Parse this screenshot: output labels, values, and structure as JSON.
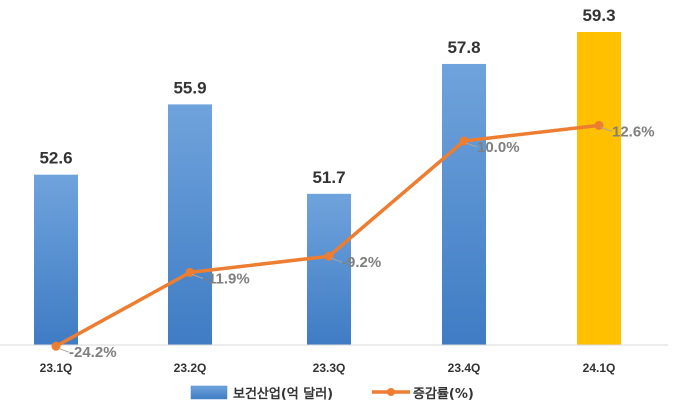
{
  "chart_data": {
    "type": "bar",
    "categories": [
      "23.1Q",
      "23.2Q",
      "23.3Q",
      "23.4Q",
      "24.1Q"
    ],
    "series": [
      {
        "name": "보건산업(억 달러)",
        "kind": "bar",
        "values": [
          52.6,
          55.9,
          51.7,
          57.8,
          59.3
        ],
        "value_labels": [
          "52.6",
          "55.9",
          "51.7",
          "57.8",
          "59.3"
        ],
        "color": "#4a86cf",
        "highlight_color": "#ffc000",
        "highlight_index": 4
      },
      {
        "name": "증감률(%)",
        "kind": "line",
        "values": [
          -24.2,
          -11.9,
          -9.2,
          10.0,
          12.6
        ],
        "value_labels": [
          "-24.2%",
          "-11.9%",
          "-9.2%",
          "10.0%",
          "12.6%"
        ],
        "color": "#ed7d31"
      }
    ],
    "bar_axis_range": [
      44.6,
      59.3
    ],
    "line_axis_range": [
      -30,
      15
    ],
    "grid": false,
    "legend_position": "bottom"
  }
}
